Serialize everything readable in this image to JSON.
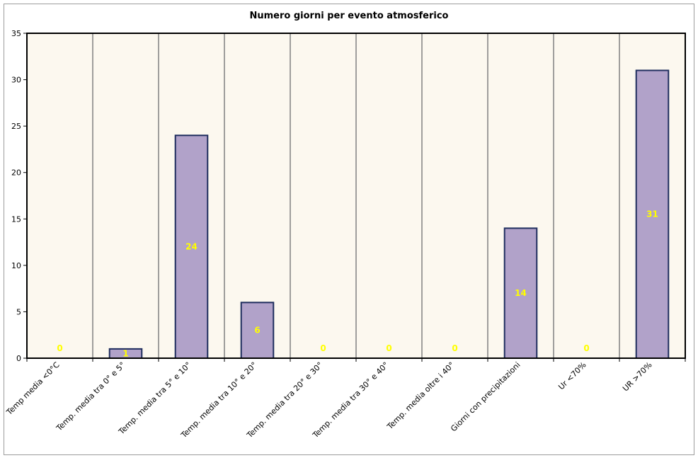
{
  "chart_data": {
    "type": "bar",
    "title": "Numero giorni per evento atmosferico",
    "categories": [
      "Temp media <0°C",
      "Temp. media tra 0° e 5°",
      "Temp. media tra 5° e 10°",
      "Temp. media tra 10° e 20°",
      "Temp. media tra 20° e 30°",
      "Temp. media tra 30° e 40°",
      "Temp. media oltre i 40°",
      "Giorni con precipitazioni",
      "Ur <70%",
      "UR >70%"
    ],
    "values": [
      0,
      1,
      24,
      6,
      0,
      0,
      0,
      14,
      0,
      31
    ],
    "data_labels": [
      "0",
      "1",
      "24",
      "6",
      "0",
      "0",
      "0",
      "14",
      "0",
      "31"
    ],
    "ylim": [
      0,
      35
    ],
    "y_ticks": [
      "0",
      "5",
      "10",
      "15",
      "20",
      "25",
      "30",
      "35"
    ],
    "xlabel": "",
    "ylabel": "",
    "grid": "vertical",
    "legend": "none",
    "colors": {
      "bar_fill": "#b1a2c9",
      "bar_stroke": "#1f2e5e",
      "plot_background": "#fcf8ef",
      "grid_line": "#808080",
      "data_label": "#ffff00"
    }
  }
}
